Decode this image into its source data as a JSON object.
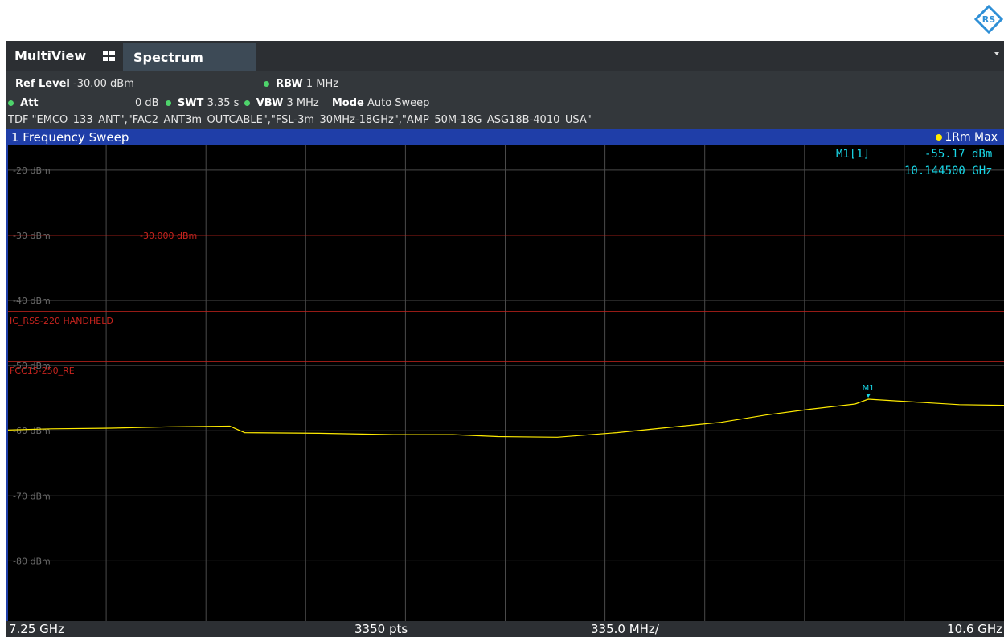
{
  "brand": {
    "logo_text": "RS"
  },
  "tabs": {
    "multiview": "MultiView",
    "spectrum": "Spectrum"
  },
  "params": {
    "ref_level_label": "Ref Level",
    "ref_level_value": "-30.00 dBm",
    "att_label": "Att",
    "att_value": "0 dB",
    "swt_label": "SWT",
    "swt_value": "3.35 s",
    "rbw_label": "RBW",
    "rbw_value": "1 MHz",
    "vbw_label": "VBW",
    "vbw_value": "3 MHz",
    "mode_label": "Mode",
    "mode_value": "Auto Sweep",
    "tdf": "TDF \"EMCO_133_ANT\",\"FAC2_ANT3m_OUTCABLE\",\"FSL-3m_30MHz-18GHz\",\"AMP_50M-18G_ASG18B-4010_USA\""
  },
  "diagram": {
    "title": "1 Frequency Sweep",
    "trace_label": "1Rm Max"
  },
  "marker": {
    "name": "M1[1]",
    "level": "-55.17 dBm",
    "freq": "10.144500 GHz",
    "label": "M1"
  },
  "footer": {
    "start": "7.25 GHz",
    "points": "3350 pts",
    "span_per_div": "335.0 MHz/",
    "stop": "10.6 GHz"
  },
  "colors": {
    "trace": "#ffeb00",
    "limit": "#c8241e",
    "marker": "#19d6e6",
    "grid": "#4a4a4a",
    "title_bar": "#1f3ea8"
  },
  "chart_data": {
    "type": "line",
    "ylabel": "",
    "ylim": [
      -89.2,
      -16.2
    ],
    "xlim": [
      7.25,
      10.6
    ],
    "y_ticks": [
      "-20 dBm",
      "-30 dBm",
      "-40 dBm",
      "-50 dBm",
      "-60 dBm",
      "-70 dBm",
      "-80 dBm"
    ],
    "y_tick_values": [
      -20,
      -30,
      -40,
      -50,
      -60,
      -70,
      -80
    ],
    "ref_line": {
      "value": -30,
      "label": "-30.000 dBm"
    },
    "limit_lines": [
      {
        "name": "IC_RSS-220 HANDHELD",
        "value": -41.7
      },
      {
        "name": "FCC15-250_RE",
        "value": -49.4
      }
    ],
    "series": [
      {
        "x": [
          7.25,
          7.4,
          7.6,
          7.8,
          8.0,
          8.05,
          8.3,
          8.55,
          8.75,
          8.9,
          9.1,
          9.3,
          9.45,
          9.65,
          9.8,
          9.95,
          10.1,
          10.144,
          10.3,
          10.45,
          10.6
        ],
        "values": [
          -59.9,
          -59.7,
          -59.6,
          -59.4,
          -59.3,
          -60.3,
          -60.4,
          -60.6,
          -60.6,
          -60.9,
          -61.0,
          -60.3,
          -59.6,
          -58.7,
          -57.6,
          -56.7,
          -55.9,
          -55.17,
          -55.6,
          -56.0,
          -56.1
        ]
      }
    ]
  }
}
